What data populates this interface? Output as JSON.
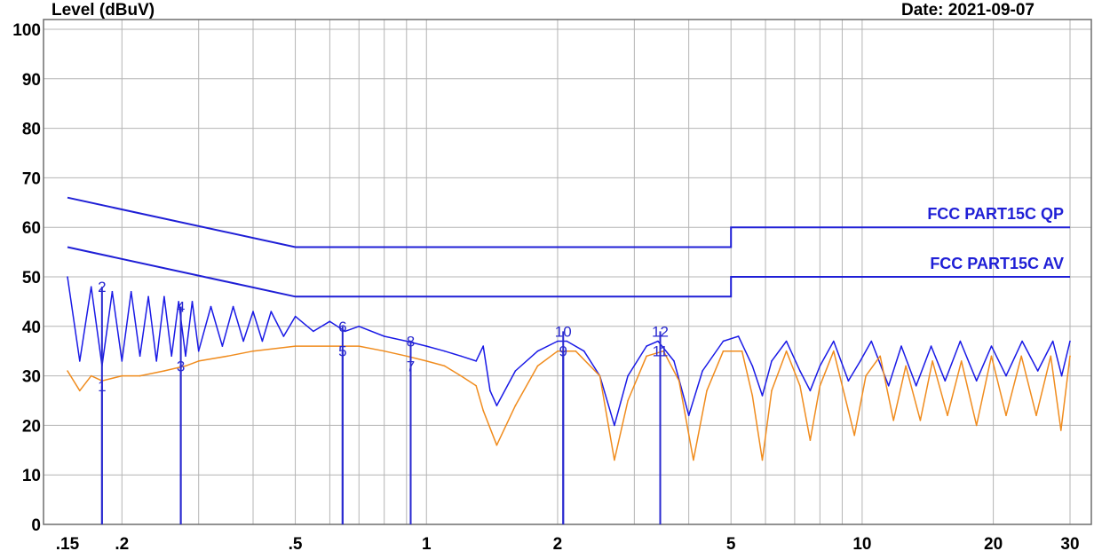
{
  "chart_data": {
    "type": "line",
    "title": "",
    "ylabel": "Level (dBuV)",
    "xlabel": "",
    "header_right": "Date: 2021-09-07",
    "x_scale": "log",
    "xlim": [
      0.15,
      30
    ],
    "ylim": [
      0,
      100
    ],
    "grid": true,
    "y_ticks": [
      0,
      10,
      20,
      30,
      40,
      50,
      60,
      70,
      80,
      90,
      100
    ],
    "x_ticks": [
      {
        "value": 0.15,
        "label": ".15"
      },
      {
        "value": 0.2,
        "label": ".2"
      },
      {
        "value": 0.5,
        "label": ".5"
      },
      {
        "value": 1,
        "label": "1"
      },
      {
        "value": 2,
        "label": "2"
      },
      {
        "value": 5,
        "label": "5"
      },
      {
        "value": 10,
        "label": "10"
      },
      {
        "value": 20,
        "label": "20"
      },
      {
        "value": 30,
        "label": "30"
      }
    ],
    "colors": {
      "limits": "#1f1fd6",
      "qp_trace": "#1a1ae6",
      "av_trace": "#f08c1e",
      "markers": "#2a2ad0",
      "grid": "#b4b4b4"
    },
    "limits": [
      {
        "name": "FCC PART15C QP",
        "points": [
          [
            0.15,
            66
          ],
          [
            0.5,
            56
          ],
          [
            5,
            56
          ],
          [
            5,
            60
          ],
          [
            30,
            60
          ]
        ]
      },
      {
        "name": "FCC PART15C AV",
        "points": [
          [
            0.15,
            56
          ],
          [
            0.5,
            46
          ],
          [
            5,
            46
          ],
          [
            5,
            50
          ],
          [
            30,
            50
          ]
        ]
      }
    ],
    "series": [
      {
        "name": "",
        "color": "#1a1ae6",
        "points": [
          [
            0.15,
            50
          ],
          [
            0.16,
            33
          ],
          [
            0.17,
            48
          ],
          [
            0.18,
            32
          ],
          [
            0.19,
            47
          ],
          [
            0.2,
            33
          ],
          [
            0.21,
            47
          ],
          [
            0.22,
            34
          ],
          [
            0.23,
            46
          ],
          [
            0.24,
            33
          ],
          [
            0.25,
            46
          ],
          [
            0.26,
            34
          ],
          [
            0.27,
            45
          ],
          [
            0.28,
            34
          ],
          [
            0.29,
            45
          ],
          [
            0.3,
            35
          ],
          [
            0.32,
            44
          ],
          [
            0.34,
            36
          ],
          [
            0.36,
            44
          ],
          [
            0.38,
            37
          ],
          [
            0.4,
            43
          ],
          [
            0.42,
            37
          ],
          [
            0.44,
            43
          ],
          [
            0.47,
            38
          ],
          [
            0.5,
            42
          ],
          [
            0.55,
            39
          ],
          [
            0.6,
            41
          ],
          [
            0.65,
            39
          ],
          [
            0.7,
            40
          ],
          [
            0.8,
            38
          ],
          [
            0.9,
            37
          ],
          [
            1.0,
            36
          ],
          [
            1.1,
            35
          ],
          [
            1.2,
            34
          ],
          [
            1.3,
            33
          ],
          [
            1.35,
            36
          ],
          [
            1.4,
            27
          ],
          [
            1.45,
            24
          ],
          [
            1.6,
            31
          ],
          [
            1.8,
            35
          ],
          [
            2.0,
            37
          ],
          [
            2.1,
            37
          ],
          [
            2.3,
            35
          ],
          [
            2.5,
            30
          ],
          [
            2.7,
            20
          ],
          [
            2.9,
            30
          ],
          [
            3.2,
            36
          ],
          [
            3.4,
            37
          ],
          [
            3.7,
            33
          ],
          [
            4.0,
            22
          ],
          [
            4.3,
            31
          ],
          [
            4.8,
            37
          ],
          [
            5.2,
            38
          ],
          [
            5.6,
            32
          ],
          [
            5.9,
            26
          ],
          [
            6.2,
            33
          ],
          [
            6.7,
            37
          ],
          [
            7.2,
            31
          ],
          [
            7.6,
            27
          ],
          [
            8.0,
            32
          ],
          [
            8.6,
            37
          ],
          [
            9.3,
            29
          ],
          [
            9.9,
            33
          ],
          [
            10.5,
            37
          ],
          [
            11.5,
            28
          ],
          [
            12.3,
            36
          ],
          [
            13.3,
            28
          ],
          [
            14.4,
            36
          ],
          [
            15.5,
            29
          ],
          [
            16.8,
            37
          ],
          [
            18.3,
            29
          ],
          [
            19.8,
            36
          ],
          [
            21.4,
            30
          ],
          [
            23.3,
            37
          ],
          [
            25.3,
            31
          ],
          [
            27.4,
            37
          ],
          [
            28.7,
            30
          ],
          [
            30,
            37
          ]
        ]
      },
      {
        "name": "",
        "color": "#f08c1e",
        "points": [
          [
            0.15,
            31
          ],
          [
            0.16,
            27
          ],
          [
            0.17,
            30
          ],
          [
            0.18,
            29
          ],
          [
            0.2,
            30
          ],
          [
            0.22,
            30
          ],
          [
            0.25,
            31
          ],
          [
            0.28,
            32
          ],
          [
            0.3,
            33
          ],
          [
            0.35,
            34
          ],
          [
            0.4,
            35
          ],
          [
            0.5,
            36
          ],
          [
            0.6,
            36
          ],
          [
            0.7,
            36
          ],
          [
            0.8,
            35
          ],
          [
            0.9,
            34
          ],
          [
            1.0,
            33
          ],
          [
            1.1,
            32
          ],
          [
            1.2,
            30
          ],
          [
            1.3,
            28
          ],
          [
            1.35,
            23
          ],
          [
            1.45,
            16
          ],
          [
            1.6,
            24
          ],
          [
            1.8,
            32
          ],
          [
            2.0,
            35
          ],
          [
            2.2,
            35
          ],
          [
            2.5,
            30
          ],
          [
            2.7,
            13
          ],
          [
            2.9,
            25
          ],
          [
            3.2,
            34
          ],
          [
            3.5,
            35
          ],
          [
            3.8,
            29
          ],
          [
            4.1,
            13
          ],
          [
            4.4,
            27
          ],
          [
            4.8,
            35
          ],
          [
            5.3,
            35
          ],
          [
            5.6,
            26
          ],
          [
            5.9,
            13
          ],
          [
            6.2,
            27
          ],
          [
            6.7,
            35
          ],
          [
            7.2,
            28
          ],
          [
            7.6,
            17
          ],
          [
            8.0,
            28
          ],
          [
            8.6,
            35
          ],
          [
            9.3,
            23
          ],
          [
            9.6,
            18
          ],
          [
            10.2,
            30
          ],
          [
            11.0,
            34
          ],
          [
            11.8,
            21
          ],
          [
            12.6,
            32
          ],
          [
            13.6,
            21
          ],
          [
            14.5,
            33
          ],
          [
            15.7,
            22
          ],
          [
            16.9,
            33
          ],
          [
            18.3,
            20
          ],
          [
            19.8,
            34
          ],
          [
            21.4,
            22
          ],
          [
            23.2,
            34
          ],
          [
            25.1,
            22
          ],
          [
            27.1,
            34
          ],
          [
            28.6,
            19
          ],
          [
            30,
            34
          ]
        ]
      }
    ],
    "markers": [
      {
        "label": "1",
        "x": 0.18,
        "y": 28
      },
      {
        "label": "2",
        "x": 0.18,
        "y": 48
      },
      {
        "label": "3",
        "x": 0.273,
        "y": 32
      },
      {
        "label": "4",
        "x": 0.273,
        "y": 44
      },
      {
        "label": "5",
        "x": 0.642,
        "y": 35
      },
      {
        "label": "6",
        "x": 0.642,
        "y": 40
      },
      {
        "label": "7",
        "x": 0.92,
        "y": 32
      },
      {
        "label": "8",
        "x": 0.92,
        "y": 37
      },
      {
        "label": "9",
        "x": 2.06,
        "y": 35
      },
      {
        "label": "10",
        "x": 2.06,
        "y": 39
      },
      {
        "label": "11",
        "x": 3.44,
        "y": 35
      },
      {
        "label": "12",
        "x": 3.44,
        "y": 39
      }
    ]
  }
}
